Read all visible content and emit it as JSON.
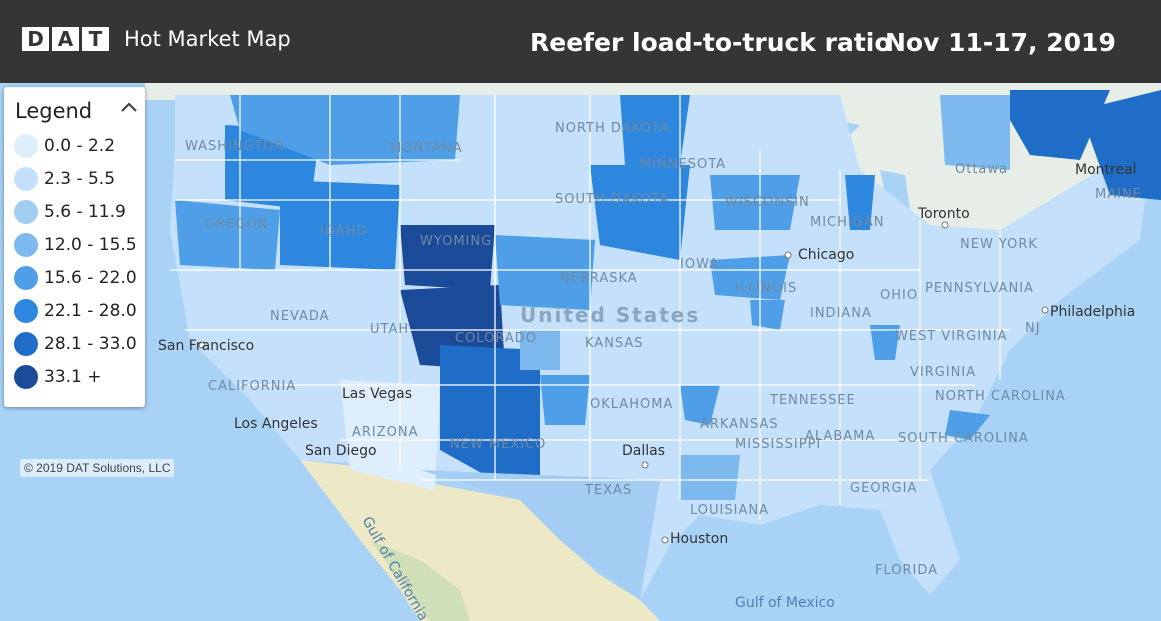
{
  "header": {
    "logo_letters": [
      "D",
      "A",
      "T"
    ],
    "product_name": "Hot Market Map",
    "title": "Reefer load-to-truck ratio",
    "date_range": "Nov 11-17, 2019"
  },
  "legend": {
    "title": "Legend",
    "toggle_icon": "chevron-up-icon",
    "items": [
      {
        "label": "0.0 - 2.2",
        "color": "#deeefc"
      },
      {
        "label": "2.3 - 5.5",
        "color": "#c4e0fa"
      },
      {
        "label": "5.6 - 11.9",
        "color": "#a4cdf4"
      },
      {
        "label": "12.0 - 15.5",
        "color": "#7db8ee"
      },
      {
        "label": "15.6 - 22.0",
        "color": "#4f9fe8"
      },
      {
        "label": "22.1 - 28.0",
        "color": "#2d87df"
      },
      {
        "label": "28.1 - 33.0",
        "color": "#1f6dc6"
      },
      {
        "label": "33.1 +",
        "color": "#1b4a98"
      }
    ]
  },
  "map": {
    "copyright": "© 2019 DAT Solutions, LLC",
    "country_label": "United States",
    "state_labels": [
      "WASHINGTON",
      "MONTANA",
      "NORTH DAKOTA",
      "MINNESOTA",
      "OREGON",
      "IDAHO",
      "SOUTH DAKOTA",
      "WISCONSIN",
      "MICHIGAN",
      "WYOMING",
      "NEBRASKA",
      "IOWA",
      "ILLINOIS",
      "NEVADA",
      "UTAH",
      "COLORADO",
      "KANSAS",
      "INDIANA",
      "OHIO",
      "CALIFORNIA",
      "ARIZONA",
      "NEW MEXICO",
      "OKLAHOMA",
      "ARKANSAS",
      "TENNESSEE",
      "MISSISSIPPI",
      "ALABAMA",
      "GEORGIA",
      "TEXAS",
      "LOUISIANA",
      "WEST VIRGINIA",
      "VIRGINIA",
      "NORTH CAROLINA",
      "SOUTH CAROLINA",
      "FLORIDA",
      "NEW YORK",
      "PENNSYLVANIA",
      "MAINE",
      "NJ",
      "Ottawa"
    ],
    "cities": [
      "San Francisco",
      "Las Vegas",
      "Los Angeles",
      "San Diego",
      "Chicago",
      "Dallas",
      "Houston",
      "Toronto",
      "Montreal",
      "Philadelphia"
    ],
    "water_labels": [
      "Gulf of California",
      "Gulf of Mexico"
    ]
  }
}
